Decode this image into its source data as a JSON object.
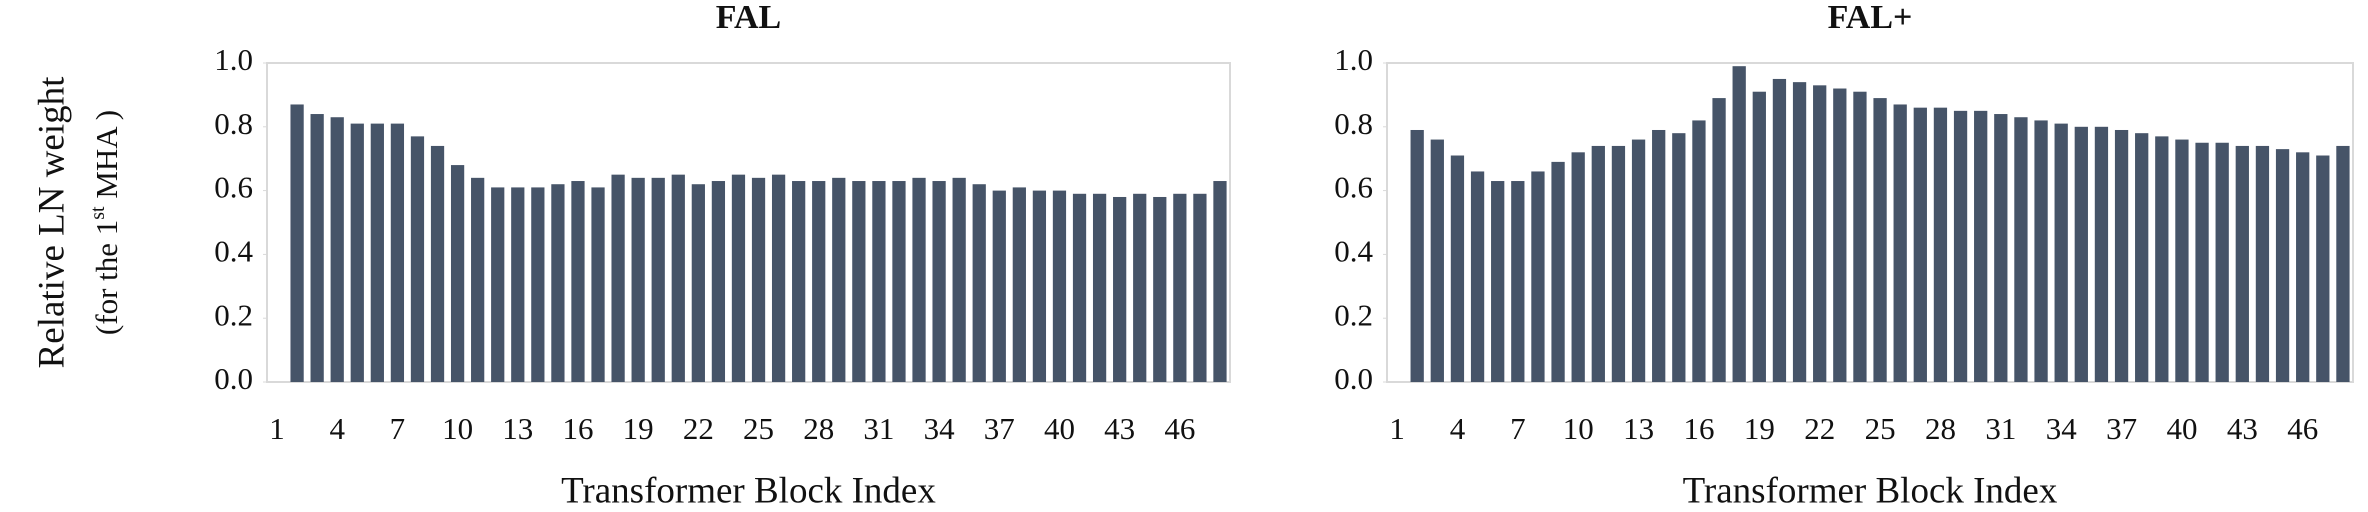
{
  "chart_data": [
    {
      "type": "bar",
      "title": "FAL",
      "ylabel": "Relative LN weight",
      "ylabel_sub": [
        "(for the 1",
        "st",
        " MHA )"
      ],
      "xlabel": "Transformer Block Index",
      "categories": [
        1,
        null,
        null,
        4,
        null,
        null,
        7,
        null,
        null,
        10,
        null,
        null,
        13,
        null,
        null,
        16,
        null,
        null,
        19,
        null,
        null,
        22,
        null,
        null,
        25,
        null,
        null,
        28,
        null,
        null,
        31,
        null,
        null,
        34,
        null,
        null,
        37,
        null,
        null,
        40,
        null,
        null,
        43,
        null,
        null,
        46,
        null,
        null
      ],
      "values": [
        null,
        0.87,
        0.84,
        0.83,
        0.81,
        0.81,
        0.81,
        0.77,
        0.74,
        0.68,
        0.64,
        0.61,
        0.61,
        0.61,
        0.62,
        0.63,
        0.61,
        0.65,
        0.64,
        0.64,
        0.65,
        0.62,
        0.63,
        0.65,
        0.64,
        0.65,
        0.63,
        0.63,
        0.64,
        0.63,
        0.63,
        0.63,
        0.64,
        0.63,
        0.64,
        0.62,
        0.6,
        0.61,
        0.6,
        0.6,
        0.59,
        0.59,
        0.58,
        0.59,
        0.58,
        0.59,
        0.59,
        0.63
      ],
      "color": "#465468",
      "ylim": [
        0,
        1
      ],
      "yticks": [
        {
          "value": 0,
          "label": "0.0"
        },
        {
          "value": 0.2,
          "label": "0.2"
        },
        {
          "value": 0.4,
          "label": "0.4"
        },
        {
          "value": 0.6,
          "label": "0.6"
        },
        {
          "value": 0.8,
          "label": "0.8"
        },
        {
          "value": 1,
          "label": "1.0"
        }
      ]
    },
    {
      "type": "bar",
      "title": "FAL+",
      "xlabel": "Transformer Block Index",
      "categories": [
        1,
        null,
        null,
        4,
        null,
        null,
        7,
        null,
        null,
        10,
        null,
        null,
        13,
        null,
        null,
        16,
        null,
        null,
        19,
        null,
        null,
        22,
        null,
        null,
        25,
        null,
        null,
        28,
        null,
        null,
        31,
        null,
        null,
        34,
        null,
        null,
        37,
        null,
        null,
        40,
        null,
        null,
        43,
        null,
        null,
        46,
        null,
        null
      ],
      "values": [
        null,
        0.79,
        0.76,
        0.71,
        0.66,
        0.63,
        0.63,
        0.66,
        0.69,
        0.72,
        0.74,
        0.74,
        0.76,
        0.79,
        0.78,
        0.82,
        0.89,
        0.99,
        0.91,
        0.95,
        0.94,
        0.93,
        0.92,
        0.91,
        0.89,
        0.87,
        0.86,
        0.86,
        0.85,
        0.85,
        0.84,
        0.83,
        0.82,
        0.81,
        0.8,
        0.8,
        0.79,
        0.78,
        0.77,
        0.76,
        0.75,
        0.75,
        0.74,
        0.74,
        0.73,
        0.72,
        0.71,
        0.74
      ],
      "color": "#465468",
      "ylim": [
        0,
        1
      ],
      "yticks": [
        {
          "value": 0,
          "label": "0.0"
        },
        {
          "value": 0.2,
          "label": "0.2"
        },
        {
          "value": 0.4,
          "label": "0.4"
        },
        {
          "value": 0.6,
          "label": "0.6"
        },
        {
          "value": 0.8,
          "label": "0.8"
        },
        {
          "value": 1,
          "label": "1.0"
        }
      ]
    }
  ]
}
